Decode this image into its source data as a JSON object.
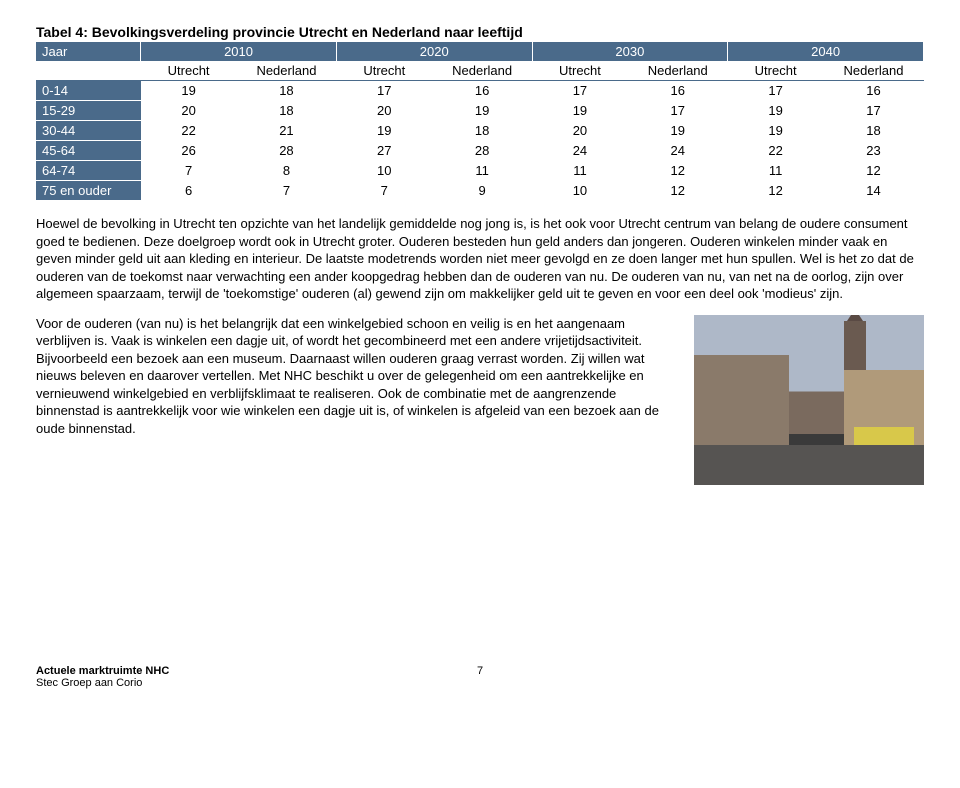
{
  "title": "Tabel 4: Bevolkingsverdeling provincie Utrecht en Nederland naar leeftijd",
  "table": {
    "year_label": "Jaar",
    "years": [
      "2010",
      "2020",
      "2030",
      "2040"
    ],
    "sub_headers": [
      "Utrecht",
      "Nederland",
      "Utrecht",
      "Nederland",
      "Utrecht",
      "Nederland",
      "Utrecht",
      "Nederland"
    ],
    "rows": [
      {
        "label": "0-14",
        "vals": [
          "19",
          "18",
          "17",
          "16",
          "17",
          "16",
          "17",
          "16"
        ]
      },
      {
        "label": "15-29",
        "vals": [
          "20",
          "18",
          "20",
          "19",
          "19",
          "17",
          "19",
          "17"
        ]
      },
      {
        "label": "30-44",
        "vals": [
          "22",
          "21",
          "19",
          "18",
          "20",
          "19",
          "19",
          "18"
        ]
      },
      {
        "label": "45-64",
        "vals": [
          "26",
          "28",
          "27",
          "28",
          "24",
          "24",
          "22",
          "23"
        ]
      },
      {
        "label": "64-74",
        "vals": [
          "7",
          "8",
          "10",
          "11",
          "11",
          "12",
          "11",
          "12"
        ]
      },
      {
        "label": "75 en ouder",
        "vals": [
          "6",
          "7",
          "7",
          "9",
          "10",
          "12",
          "12",
          "14"
        ]
      }
    ]
  },
  "para1": "Hoewel de bevolking in Utrecht ten opzichte van het landelijk gemiddelde nog jong is, is het ook voor Utrecht centrum van belang de oudere consument goed te bedienen. Deze doelgroep wordt ook in Utrecht groter. Ouderen besteden hun geld anders dan jongeren. Ouderen winkelen minder vaak en geven minder geld uit aan kleding en interieur. De laatste modetrends worden niet meer gevolgd en ze doen langer met hun spullen. Wel is het zo dat de ouderen van de toekomst naar verwachting een ander koopgedrag hebben dan de ouderen van nu. De ouderen van nu, van net na de oorlog, zijn over algemeen spaarzaam, terwijl de 'toekomstige' ouderen (al) gewend zijn om makkelijker geld uit te geven en voor een deel ook 'modieus' zijn.",
  "para2": "Voor de ouderen (van nu) is het belangrijk dat een winkelgebied schoon en veilig is en het aangenaam verblijven is. Vaak is winkelen een dagje uit, of wordt het gecombineerd met een andere vrijetijdsactiviteit. Bijvoorbeeld een bezoek aan een museum. Daarnaast willen ouderen graag verrast worden. Zij willen wat nieuws beleven en daarover vertellen. Met NHC beschikt u over de gelegenheid om een aantrekkelijke en vernieuwend winkelgebied en verblijfsklimaat te realiseren. Ook de combinatie met de aangrenzende binnenstad is aantrekkelijk voor wie winkelen een dagje uit is, of winkelen is afgeleid van een bezoek aan de oude binnenstad.",
  "footer": {
    "line1": "Actuele marktruimte NHC",
    "line2": "Stec Groep aan Corio",
    "page": "7"
  }
}
